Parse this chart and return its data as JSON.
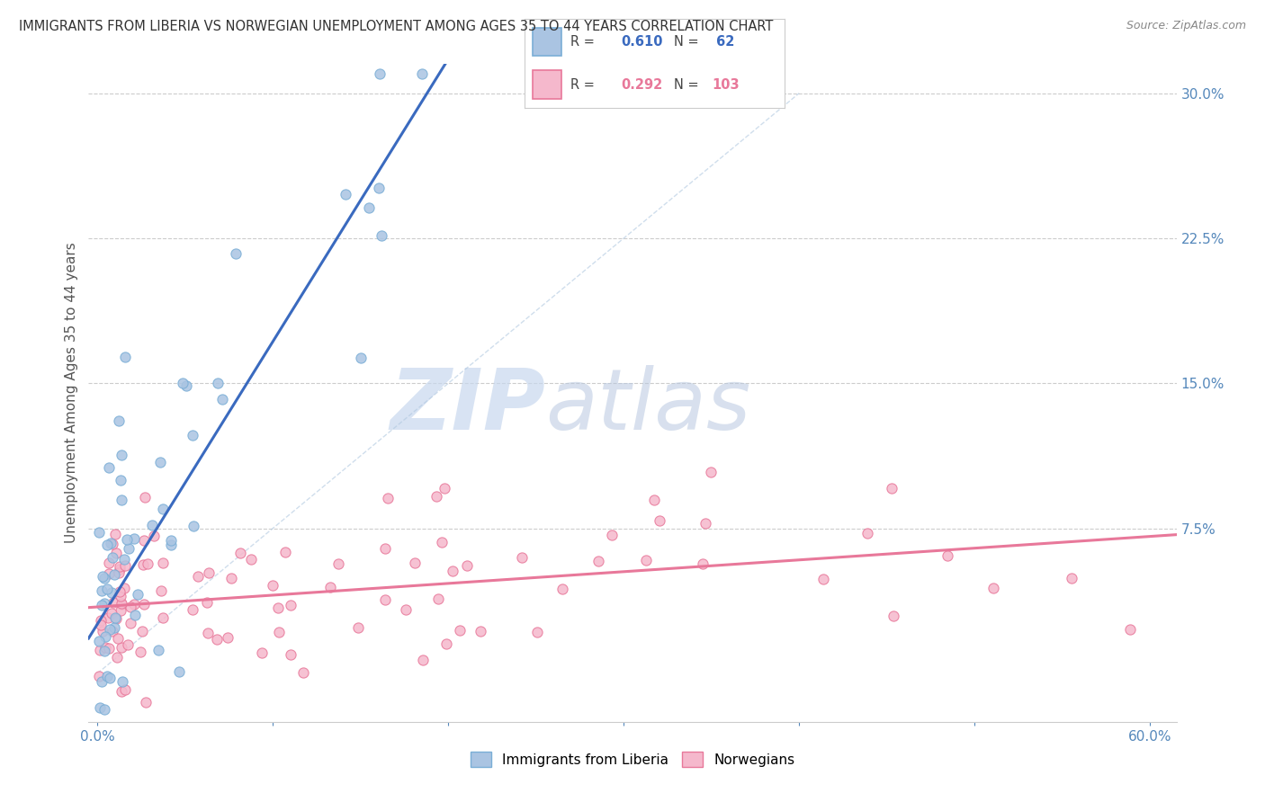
{
  "title": "IMMIGRANTS FROM LIBERIA VS NORWEGIAN UNEMPLOYMENT AMONG AGES 35 TO 44 YEARS CORRELATION CHART",
  "source": "Source: ZipAtlas.com",
  "ylabel": "Unemployment Among Ages 35 to 44 years",
  "liberia_R": 0.61,
  "liberia_N": 62,
  "norwegian_R": 0.292,
  "norwegian_N": 103,
  "liberia_color": "#aac4e2",
  "liberia_edge_color": "#7aaed6",
  "norwegian_color": "#f5b8cc",
  "norwegian_edge_color": "#e8789a",
  "liberia_line_color": "#3a6abf",
  "norwegian_line_color": "#e8789a",
  "background_color": "#ffffff",
  "watermark_zip_color": "#c8d8ee",
  "watermark_atlas_color": "#b8c8e0",
  "x_tick_color": "#5588bb",
  "y_tick_color": "#5588bb",
  "grid_color": "#cccccc",
  "legend_border_color": "#cccccc"
}
